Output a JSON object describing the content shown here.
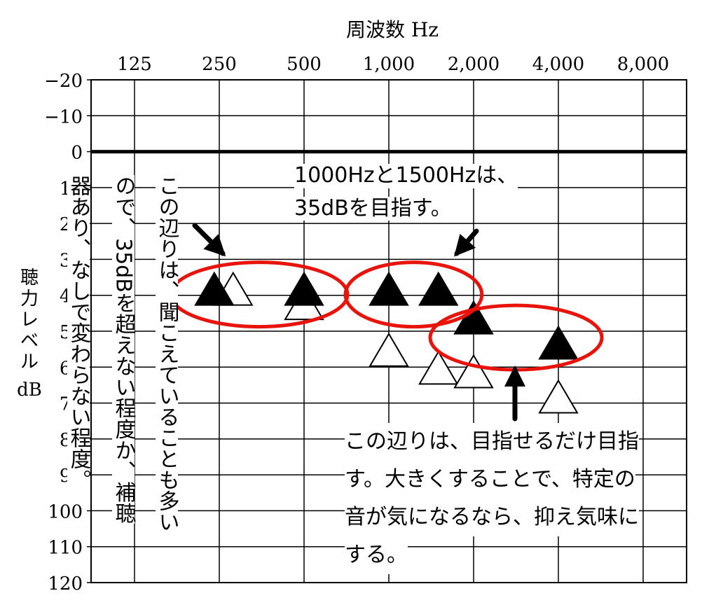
{
  "chart_data": {
    "type": "scatter",
    "title": "周波数 Hz",
    "ylabel": "聴力レベル dB",
    "x_categories": [
      "125",
      "250",
      "500",
      "1,000",
      "2,000",
      "4,000",
      "8,000"
    ],
    "x_scale": "log2",
    "y_ticks": [
      "−20",
      "−10",
      "0",
      "10",
      "20",
      "30",
      "40",
      "50",
      "60",
      "70",
      "80",
      "90",
      "100",
      "110",
      "120"
    ],
    "ylim": [
      -20,
      120
    ],
    "y_inverted": true,
    "grid": true,
    "series": [
      {
        "marker": "filled-triangle",
        "points": [
          {
            "hz": 240,
            "db": 39
          },
          {
            "hz": 500,
            "db": 39
          },
          {
            "hz": 1000,
            "db": 39
          },
          {
            "hz": 1500,
            "db": 39
          },
          {
            "hz": 2000,
            "db": 47
          },
          {
            "hz": 4000,
            "db": 54
          }
        ]
      },
      {
        "marker": "open-triangle",
        "points": [
          {
            "hz": 280,
            "db": 39
          },
          {
            "hz": 500,
            "db": 43
          },
          {
            "hz": 1000,
            "db": 56
          },
          {
            "hz": 1500,
            "db": 61
          },
          {
            "hz": 2000,
            "db": 62
          },
          {
            "hz": 4000,
            "db": 69
          }
        ]
      }
    ],
    "highlight_groups": [
      {
        "hz_from": 240,
        "hz_to": 500,
        "db": 39
      },
      {
        "hz_from": 1000,
        "hz_to": 1500,
        "db": 39
      },
      {
        "hz_from": 2000,
        "hz_to": 4000,
        "db": 51
      }
    ]
  },
  "annotations": {
    "top_right_line1": "1000Hzと1500Hzは、",
    "top_right_line2": "35dBを目指す。",
    "bottom_right_line1": "この辺りは、目指せるだけ目指",
    "bottom_right_line2": "す。大きくすることで、特定の",
    "bottom_right_line3": "音が気になるなら、抑え気味に",
    "bottom_right_line4": "する。",
    "vertical_col1": "この辺りは、聞こえていることも多い",
    "vertical_col2": "ので、35dBを超えない程度か、補聴",
    "vertical_col3": "器あり、なしで変わらない程度。"
  },
  "colors": {
    "highlight": "#e8140c",
    "ink": "#000000"
  }
}
